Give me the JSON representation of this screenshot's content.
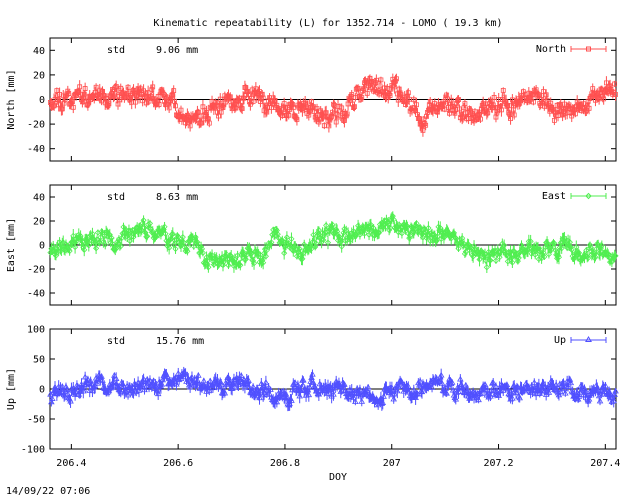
{
  "chart_data": {
    "type": "scatter",
    "title": "Kinematic repeatability (L) for 1352.714 - LOMO  ( 19.3 km)",
    "xlabel": "DOY",
    "xlim": [
      206.36,
      207.42
    ],
    "xticks": [
      206.4,
      206.6,
      206.8,
      207,
      207.2,
      207.4
    ],
    "xtick_labels": [
      "206.4",
      "206.6",
      "206.8",
      "207",
      "207.2",
      "207.4"
    ],
    "footer": "14/09/22 07:06",
    "panels": [
      {
        "name": "north",
        "ylabel": "North [mm]",
        "ylim": [
          -50,
          50
        ],
        "yticks": [
          -40,
          -20,
          0,
          20,
          40
        ],
        "ytick_labels": [
          "-40",
          "-20",
          "0",
          "20",
          "40"
        ],
        "std_label": "std",
        "std_value": "9.06 mm",
        "legend": "North",
        "color": "#ff5050",
        "marker": "square",
        "trend": [
          [
            206.36,
            2
          ],
          [
            206.4,
            3
          ],
          [
            206.45,
            6
          ],
          [
            206.5,
            4
          ],
          [
            206.55,
            2
          ],
          [
            206.6,
            -5
          ],
          [
            206.63,
            -18
          ],
          [
            206.66,
            -10
          ],
          [
            206.7,
            -4
          ],
          [
            206.73,
            4
          ],
          [
            206.76,
            -2
          ],
          [
            206.8,
            -10
          ],
          [
            206.83,
            -5
          ],
          [
            206.86,
            -8
          ],
          [
            206.88,
            -15
          ],
          [
            206.91,
            -12
          ],
          [
            206.94,
            5
          ],
          [
            206.97,
            10
          ],
          [
            207,
            12
          ],
          [
            207.03,
            -5
          ],
          [
            207.06,
            -15
          ],
          [
            207.09,
            -5
          ],
          [
            207.12,
            -8
          ],
          [
            207.15,
            -12
          ],
          [
            207.18,
            -6
          ],
          [
            207.21,
            -3
          ],
          [
            207.24,
            -2
          ],
          [
            207.27,
            4
          ],
          [
            207.3,
            -6
          ],
          [
            207.33,
            -12
          ],
          [
            207.36,
            -4
          ],
          [
            207.39,
            2
          ],
          [
            207.42,
            8
          ]
        ],
        "amp": 8,
        "seed": 11
      },
      {
        "name": "east",
        "ylabel": "East [mm]",
        "ylim": [
          -50,
          50
        ],
        "yticks": [
          -40,
          -20,
          0,
          20,
          40
        ],
        "ytick_labels": [
          "-40",
          "-20",
          "0",
          "20",
          "40"
        ],
        "std_label": "std",
        "std_value": "8.63 mm",
        "legend": "East",
        "color": "#50ee50",
        "marker": "diamond",
        "trend": [
          [
            206.36,
            -3
          ],
          [
            206.4,
            2
          ],
          [
            206.45,
            4
          ],
          [
            206.5,
            5
          ],
          [
            206.53,
            14
          ],
          [
            206.56,
            12
          ],
          [
            206.6,
            5
          ],
          [
            206.63,
            -2
          ],
          [
            206.66,
            -12
          ],
          [
            206.7,
            -15
          ],
          [
            206.73,
            -8
          ],
          [
            206.76,
            -10
          ],
          [
            206.78,
            8
          ],
          [
            206.8,
            0
          ],
          [
            206.83,
            -8
          ],
          [
            206.86,
            5
          ],
          [
            206.9,
            8
          ],
          [
            206.93,
            10
          ],
          [
            206.96,
            12
          ],
          [
            207,
            18
          ],
          [
            207.03,
            14
          ],
          [
            207.06,
            10
          ],
          [
            207.09,
            8
          ],
          [
            207.12,
            2
          ],
          [
            207.15,
            0
          ],
          [
            207.18,
            -12
          ],
          [
            207.21,
            -6
          ],
          [
            207.24,
            -4
          ],
          [
            207.27,
            -5
          ],
          [
            207.3,
            -4
          ],
          [
            207.33,
            0
          ],
          [
            207.36,
            -5
          ],
          [
            207.39,
            -8
          ],
          [
            207.42,
            -10
          ]
        ],
        "amp": 7,
        "seed": 23
      },
      {
        "name": "up",
        "ylabel": "Up [mm]",
        "ylim": [
          -100,
          100
        ],
        "yticks": [
          -100,
          -50,
          0,
          50,
          100
        ],
        "ytick_labels": [
          "-100",
          "-50",
          "0",
          "50",
          "100"
        ],
        "std_label": "std",
        "std_value": "15.76 mm",
        "legend": "Up",
        "color": "#5050ff",
        "marker": "triangle",
        "trend": [
          [
            206.36,
            -5
          ],
          [
            206.4,
            -5
          ],
          [
            206.45,
            10
          ],
          [
            206.5,
            2
          ],
          [
            206.55,
            5
          ],
          [
            206.6,
            15
          ],
          [
            206.65,
            5
          ],
          [
            206.7,
            10
          ],
          [
            206.75,
            -5
          ],
          [
            206.8,
            -10
          ],
          [
            206.85,
            5
          ],
          [
            206.9,
            -5
          ],
          [
            206.95,
            -15
          ],
          [
            207,
            -5
          ],
          [
            207.05,
            0
          ],
          [
            207.1,
            5
          ],
          [
            207.15,
            -5
          ],
          [
            207.2,
            0
          ],
          [
            207.25,
            -5
          ],
          [
            207.3,
            0
          ],
          [
            207.35,
            -5
          ],
          [
            207.42,
            -10
          ]
        ],
        "amp": 14,
        "seed": 37
      }
    ]
  }
}
